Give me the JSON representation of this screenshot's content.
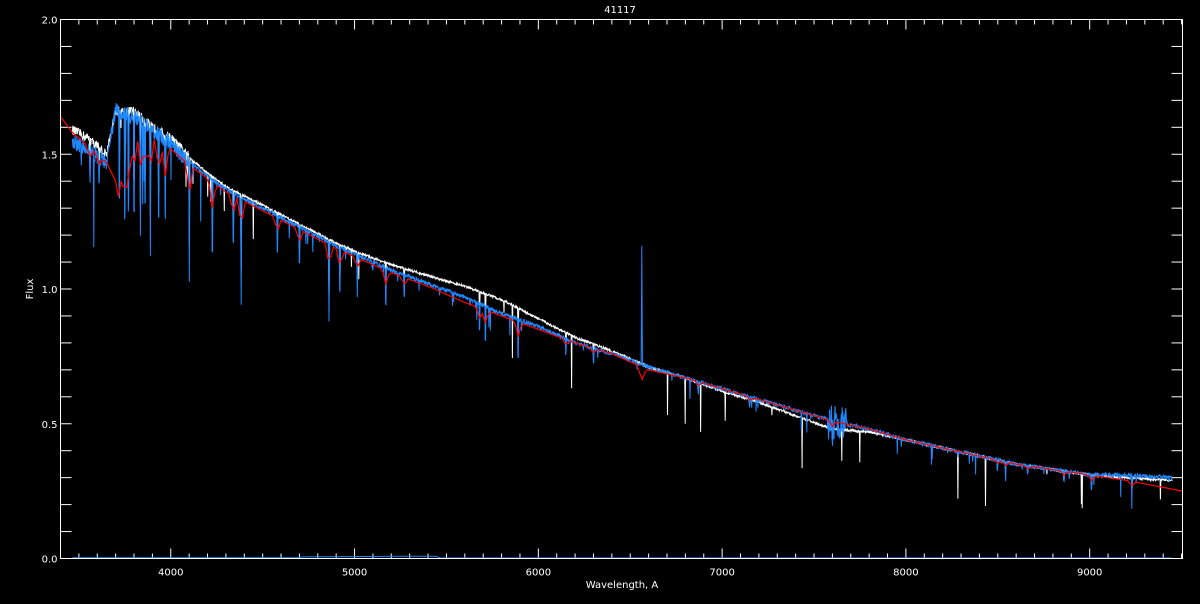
{
  "chart_data": {
    "type": "line",
    "title": "41117",
    "xlabel": "Wavelength, A",
    "ylabel": "Flux",
    "xlim": [
      3400,
      9505
    ],
    "ylim": [
      0.0,
      2.0
    ],
    "x_ticks": [
      "4000",
      "5000",
      "6000",
      "7000",
      "8000",
      "9000"
    ],
    "y_ticks": [
      "0.0",
      "0.5",
      "1.0",
      "1.5",
      "2.0"
    ],
    "x_minor_step": 100,
    "y_minor_step": 0.1,
    "grid": false,
    "background": "#000000",
    "series": [
      {
        "color": "#ffffff",
        "x": [
          3465,
          3550,
          3650,
          3700,
          3800,
          3900,
          4000,
          4100,
          4200,
          4300,
          4500,
          4700,
          4900,
          5000,
          5200,
          5400,
          5600,
          5800,
          6000,
          6200,
          6400,
          6600,
          6800,
          7000,
          7200,
          7400,
          7600,
          7800,
          8000,
          8200,
          8400,
          8600,
          8800,
          9000,
          9200,
          9450
        ],
        "y": [
          1.59,
          1.56,
          1.5,
          1.66,
          1.66,
          1.6,
          1.56,
          1.49,
          1.43,
          1.38,
          1.31,
          1.24,
          1.17,
          1.14,
          1.09,
          1.05,
          1.01,
          0.96,
          0.89,
          0.82,
          0.77,
          0.71,
          0.67,
          0.62,
          0.58,
          0.53,
          0.48,
          0.47,
          0.44,
          0.41,
          0.38,
          0.35,
          0.33,
          0.31,
          0.3,
          0.29
        ]
      },
      {
        "color": "#1e88ff",
        "x": [
          3465,
          3550,
          3650,
          3700,
          3800,
          3900,
          4000,
          4100,
          4200,
          4300,
          4500,
          4700,
          4900,
          5000,
          5200,
          5400,
          5600,
          5800,
          6000,
          6200,
          6400,
          6600,
          6800,
          7000,
          7200,
          7400,
          7600,
          7800,
          8000,
          8200,
          8400,
          8600,
          8800,
          9000,
          9200,
          9450
        ],
        "y": [
          1.55,
          1.52,
          1.47,
          1.66,
          1.64,
          1.59,
          1.54,
          1.47,
          1.42,
          1.37,
          1.3,
          1.23,
          1.16,
          1.13,
          1.07,
          1.02,
          0.97,
          0.91,
          0.86,
          0.8,
          0.76,
          0.71,
          0.67,
          0.63,
          0.59,
          0.55,
          0.51,
          0.48,
          0.44,
          0.41,
          0.38,
          0.35,
          0.33,
          0.31,
          0.31,
          0.3
        ]
      },
      {
        "color": "#ff0000",
        "x": [
          3400,
          3465,
          3550,
          3650,
          3700,
          3800,
          3900,
          4000,
          4100,
          4200,
          4300,
          4500,
          4700,
          4900,
          5000,
          5200,
          5400,
          5600,
          5800,
          6000,
          6200,
          6400,
          6600,
          6800,
          7000,
          7200,
          7400,
          7600,
          7800,
          8000,
          8200,
          8400,
          8600,
          8800,
          9000,
          9200,
          9505
        ],
        "y": [
          1.64,
          1.58,
          1.53,
          1.47,
          1.4,
          1.58,
          1.56,
          1.52,
          1.46,
          1.41,
          1.36,
          1.29,
          1.22,
          1.15,
          1.12,
          1.06,
          1.01,
          0.95,
          0.9,
          0.85,
          0.8,
          0.76,
          0.7,
          0.67,
          0.63,
          0.59,
          0.55,
          0.51,
          0.48,
          0.44,
          0.41,
          0.38,
          0.35,
          0.33,
          0.31,
          0.29,
          0.25
        ]
      },
      {
        "color": "#1e88ff",
        "x": [
          3465,
          4700,
          4710,
          5200,
          5450,
          5460,
          9450
        ],
        "y": [
          0.003,
          0.003,
          0.006,
          0.008,
          0.008,
          0.002,
          0.002
        ]
      }
    ],
    "absorption_lines": [
      {
        "wavelength": 3560,
        "depth": 0.15
      },
      {
        "wavelength": 3610,
        "depth": 0.12
      },
      {
        "wavelength": 3720,
        "depth": 0.45
      },
      {
        "wavelength": 3750,
        "depth": 0.55
      },
      {
        "wavelength": 3770,
        "depth": 0.5
      },
      {
        "wavelength": 3800,
        "depth": 0.55
      },
      {
        "wavelength": 3835,
        "depth": 0.45
      },
      {
        "wavelength": 3860,
        "depth": 0.4
      },
      {
        "wavelength": 3889,
        "depth": 0.5
      },
      {
        "wavelength": 3934,
        "depth": 0.45
      },
      {
        "wavelength": 3970,
        "depth": 0.45
      },
      {
        "wavelength": 4101,
        "depth": 0.45
      },
      {
        "wavelength": 4226,
        "depth": 0.4
      },
      {
        "wavelength": 4340,
        "depth": 0.27
      },
      {
        "wavelength": 4383,
        "depth": 0.4
      },
      {
        "wavelength": 4580,
        "depth": 0.2
      },
      {
        "wavelength": 4700,
        "depth": 0.2
      },
      {
        "wavelength": 4861,
        "depth": 0.3
      },
      {
        "wavelength": 4920,
        "depth": 0.25
      },
      {
        "wavelength": 5015,
        "depth": 0.15
      },
      {
        "wavelength": 5170,
        "depth": 0.2
      },
      {
        "wavelength": 5270,
        "depth": 0.12
      },
      {
        "wavelength": 5680,
        "depth": 0.15
      },
      {
        "wavelength": 5712,
        "depth": 0.2
      },
      {
        "wavelength": 5890,
        "depth": 0.22
      },
      {
        "wavelength": 6150,
        "depth": 0.08
      },
      {
        "wavelength": 6300,
        "depth": 0.08
      },
      {
        "wavelength": 6870,
        "depth": 0.06
      },
      {
        "wavelength": 7150,
        "depth": 0.05
      },
      {
        "wavelength": 7600,
        "depth": 0.08
      },
      {
        "wavelength": 8498,
        "depth": 0.05
      },
      {
        "wavelength": 8542,
        "depth": 0.06
      },
      {
        "wavelength": 8662,
        "depth": 0.05
      },
      {
        "wavelength": 8860,
        "depth": 0.06
      },
      {
        "wavelength": 9010,
        "depth": 0.08
      },
      {
        "wavelength": 9230,
        "depth": 0.07
      }
    ],
    "emission_lines": [
      {
        "wavelength": 6563,
        "peak": 1.16
      }
    ]
  }
}
